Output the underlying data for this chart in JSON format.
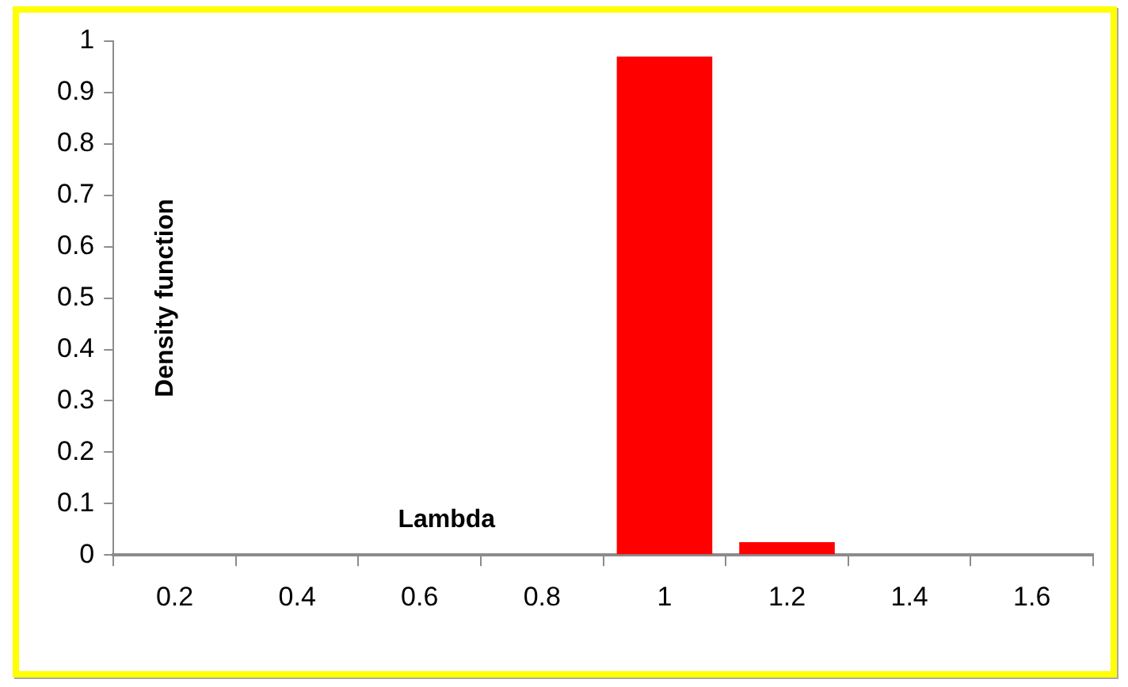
{
  "chart_data": {
    "type": "bar",
    "xlabel": "Lambda",
    "ylabel": "Density function",
    "categories": [
      "0.2",
      "0.4",
      "0.6",
      "0.8",
      "1",
      "1.2",
      "1.4",
      "1.6"
    ],
    "values": [
      0,
      0,
      0,
      0,
      0.97,
      0.025,
      0,
      0
    ],
    "color": "#ff0000",
    "ylim": [
      0,
      1
    ],
    "yticks": [
      0,
      0.1,
      0.2,
      0.3,
      0.4,
      0.5,
      0.6,
      0.7,
      0.8,
      0.9,
      1
    ],
    "grid": false,
    "legend": false
  }
}
